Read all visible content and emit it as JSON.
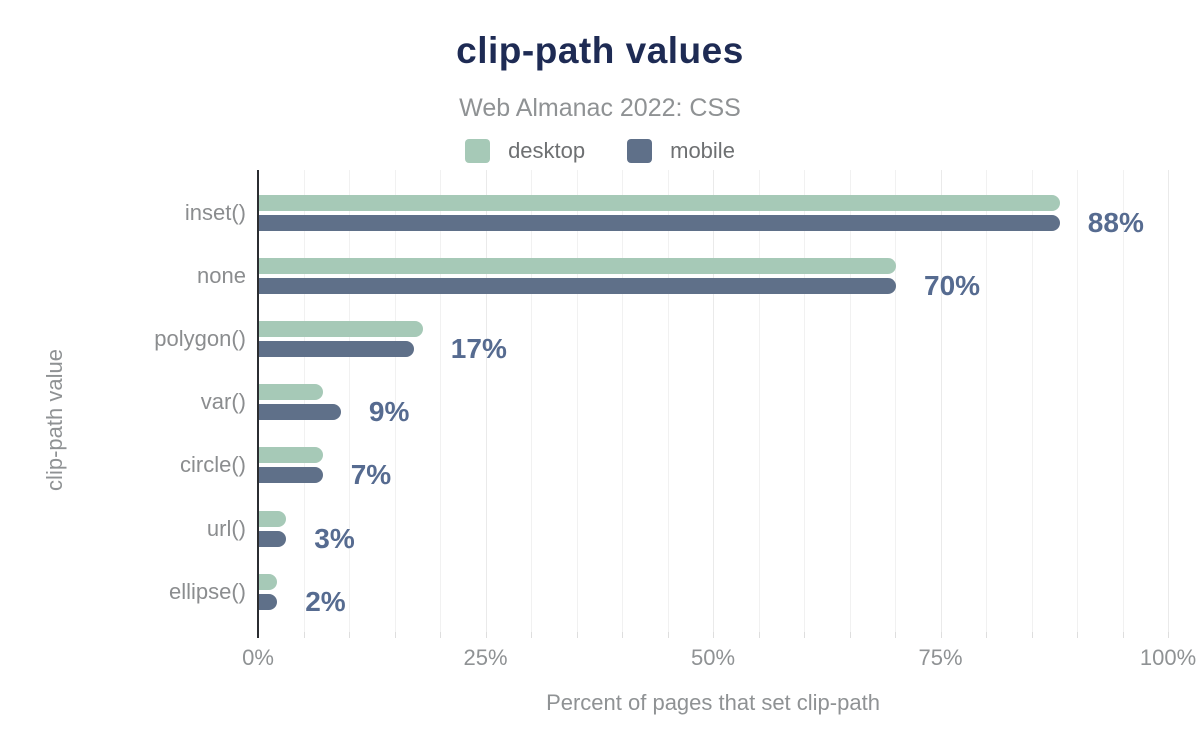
{
  "header": {
    "title": "clip-path values",
    "subtitle": "Web Almanac 2022: CSS"
  },
  "legend": {
    "position": "top-center",
    "items": [
      {
        "label": "desktop",
        "color": "#a6c9b7"
      },
      {
        "label": "mobile",
        "color": "#5f7089"
      }
    ]
  },
  "chart_data": {
    "type": "bar",
    "orientation": "horizontal",
    "title": "clip-path values",
    "subtitle": "Web Almanac 2022: CSS",
    "xlabel": "Percent of pages that set clip-path",
    "ylabel": "clip-path value",
    "xlim": [
      0,
      100
    ],
    "grid": {
      "on": true,
      "direction": "vertical",
      "minor_interval_pct": 5,
      "major_interval_pct": 25
    },
    "categories": [
      "inset()",
      "none",
      "polygon()",
      "var()",
      "circle()",
      "url()",
      "ellipse()"
    ],
    "series": [
      {
        "name": "desktop",
        "color": "#a6c9b7",
        "values": [
          88,
          70,
          18,
          7,
          7,
          3,
          2
        ]
      },
      {
        "name": "mobile",
        "color": "#5f7089",
        "values": [
          88,
          70,
          17,
          9,
          7,
          3,
          2
        ]
      }
    ],
    "value_labels": [
      "88%",
      "70%",
      "17%",
      "9%",
      "7%",
      "3%",
      "2%"
    ],
    "x_ticks": [
      {
        "value": 0,
        "label": "0%"
      },
      {
        "value": 25,
        "label": "25%"
      },
      {
        "value": 50,
        "label": "50%"
      },
      {
        "value": 75,
        "label": "75%"
      },
      {
        "value": 100,
        "label": "100%"
      }
    ]
  },
  "colors": {
    "title": "#1e2b54",
    "subtitle": "#8f9294",
    "axis_text": "#8f9294",
    "category_text": "#8b8d8f",
    "legend_text": "#6e7072",
    "value_label": "#566b90",
    "axis_line": "#2b2d31",
    "gridline_minor": "#f1f1f1",
    "gridline_major": "#eaeaea",
    "tick": "#dedede",
    "background": "#ffffff"
  }
}
